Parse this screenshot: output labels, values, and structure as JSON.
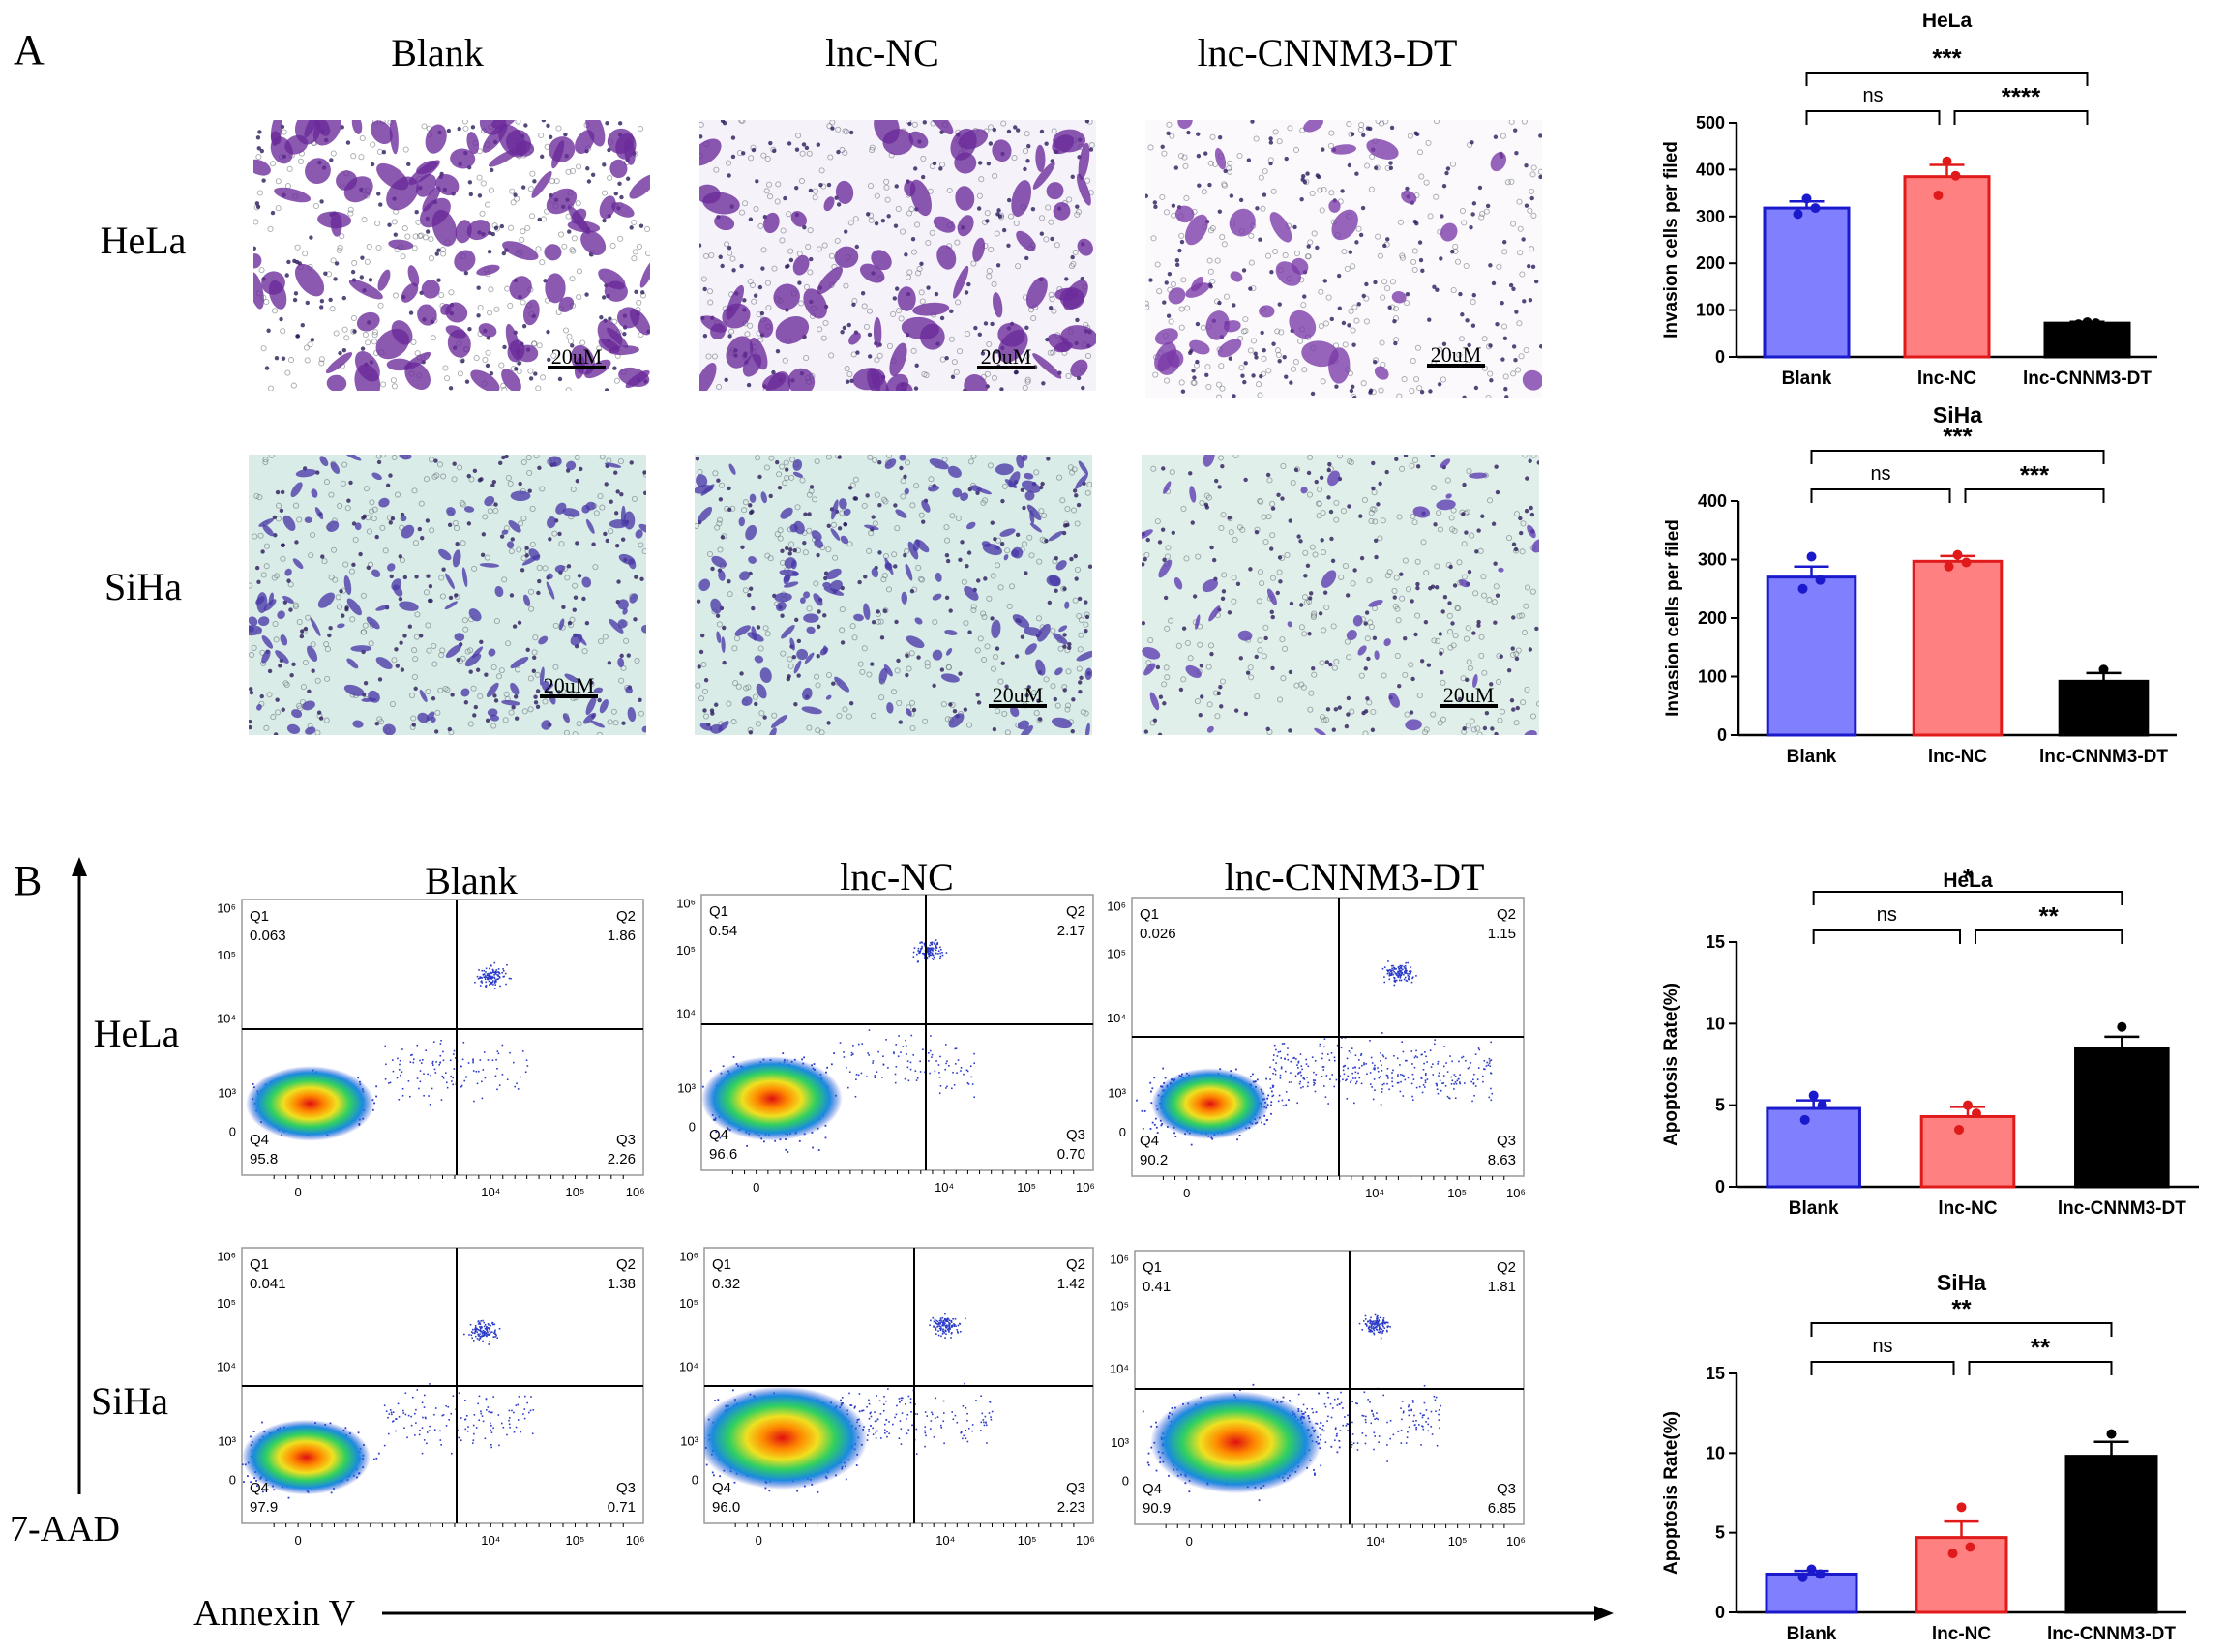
{
  "panel_labels": [
    "A",
    "B"
  ],
  "panel_a": {
    "column_titles": [
      "Blank",
      "lnc-NC",
      "lnc-CNNM3-DT"
    ],
    "row_labels": [
      "HeLa",
      "SiHa"
    ],
    "scale_bar_label": "20uM"
  },
  "panel_b": {
    "column_titles": [
      "Blank",
      "lnc-NC",
      "lnc-CNNM3-DT"
    ],
    "row_labels": [
      "HeLa",
      "SiHa"
    ],
    "x_axis_label": "Annexin V",
    "y_axis_label": "7-AAD",
    "flow_tick_labels": {
      "y": [
        "10⁶",
        "10⁵",
        "10⁴",
        "10³",
        "0"
      ],
      "x": [
        "0",
        "10⁴",
        "10⁵",
        "10⁶"
      ]
    },
    "quadrant_names": [
      "Q1",
      "Q2",
      "Q3",
      "Q4"
    ],
    "quadrants": [
      {
        "cell": "HeLa",
        "group": "Blank",
        "Q1": "0.063",
        "Q2": "1.86",
        "Q3": "2.26",
        "Q4": "95.8"
      },
      {
        "cell": "HeLa",
        "group": "lnc-NC",
        "Q1": "0.54",
        "Q2": "2.17",
        "Q3": "0.70",
        "Q4": "96.6"
      },
      {
        "cell": "HeLa",
        "group": "lnc-CNNM3-DT",
        "Q1": "0.026",
        "Q2": "1.15",
        "Q3": "8.63",
        "Q4": "90.2"
      },
      {
        "cell": "SiHa",
        "group": "Blank",
        "Q1": "0.041",
        "Q2": "1.38",
        "Q3": "0.71",
        "Q4": "97.9"
      },
      {
        "cell": "SiHa",
        "group": "lnc-NC",
        "Q1": "0.32",
        "Q2": "1.42",
        "Q3": "2.23",
        "Q4": "96.0"
      },
      {
        "cell": "SiHa",
        "group": "lnc-CNNM3-DT",
        "Q1": "0.41",
        "Q2": "1.81",
        "Q3": "6.85",
        "Q4": "90.9"
      }
    ]
  },
  "colors": {
    "blank_fill": "#8080ff",
    "blank_edge": "#1a1acc",
    "nc_fill": "#ff8080",
    "nc_edge": "#e01a1a",
    "dt_fill": "#000000"
  },
  "chart_data": [
    {
      "type": "bar",
      "title": "HeLa",
      "ylabel": "Invasion cells per filed",
      "xlabel": "",
      "categories": [
        "Blank",
        "lnc-NC",
        "lnc-CNNM3-DT"
      ],
      "values": [
        318,
        385,
        72
      ],
      "errors": [
        14,
        25,
        3
      ],
      "points": [
        [
          305,
          318,
          338
        ],
        [
          345,
          387,
          418
        ],
        [
          70,
          72,
          74
        ]
      ],
      "ylim": [
        0,
        500
      ],
      "yticks": [
        0,
        100,
        200,
        300,
        400,
        500
      ],
      "significance": [
        {
          "from": 0,
          "to": 1,
          "label": "ns",
          "level": 1
        },
        {
          "from": 1,
          "to": 2,
          "label": "****",
          "level": 1
        },
        {
          "from": 0,
          "to": 2,
          "label": "***",
          "level": 2
        }
      ]
    },
    {
      "type": "bar",
      "title": "SiHa",
      "ylabel": "Invasion cells per filed",
      "xlabel": "",
      "categories": [
        "Blank",
        "lnc-NC",
        "lnc-CNNM3-DT"
      ],
      "values": [
        270,
        297,
        92
      ],
      "errors": [
        18,
        9,
        14
      ],
      "points": [
        [
          250,
          265,
          305
        ],
        [
          288,
          295,
          308
        ],
        [
          80,
          85,
          112
        ]
      ],
      "ylim": [
        0,
        400
      ],
      "yticks": [
        0,
        100,
        200,
        300,
        400
      ],
      "significance": [
        {
          "from": 0,
          "to": 1,
          "label": "ns",
          "level": 1
        },
        {
          "from": 1,
          "to": 2,
          "label": "***",
          "level": 1
        },
        {
          "from": 0,
          "to": 2,
          "label": "***",
          "level": 2
        }
      ]
    },
    {
      "type": "bar",
      "title": "HeLa",
      "ylabel": "Apoptosis Rate(%)",
      "xlabel": "",
      "categories": [
        "Blank",
        "lnc-NC",
        "lnc-CNNM3-DT"
      ],
      "values": [
        4.8,
        4.3,
        8.5
      ],
      "errors": [
        0.5,
        0.6,
        0.7
      ],
      "points": [
        [
          4.1,
          5.0,
          5.6
        ],
        [
          3.5,
          4.5,
          5.0
        ],
        [
          7.8,
          8.0,
          9.8
        ]
      ],
      "ylim": [
        0,
        15
      ],
      "yticks": [
        0,
        5,
        10,
        15
      ],
      "significance": [
        {
          "from": 0,
          "to": 1,
          "label": "ns",
          "level": 1
        },
        {
          "from": 1,
          "to": 2,
          "label": "**",
          "level": 1
        },
        {
          "from": 0,
          "to": 2,
          "label": "*",
          "level": 2
        }
      ]
    },
    {
      "type": "bar",
      "title": "SiHa",
      "ylabel": "Apoptosis Rate(%)",
      "xlabel": "",
      "categories": [
        "Blank",
        "lnc-NC",
        "lnc-CNNM3-DT"
      ],
      "values": [
        2.4,
        4.7,
        9.8
      ],
      "errors": [
        0.2,
        1.0,
        0.9
      ],
      "points": [
        [
          2.2,
          2.4,
          2.7
        ],
        [
          3.7,
          4.1,
          6.6
        ],
        [
          8.8,
          9.4,
          11.2
        ]
      ],
      "ylim": [
        0,
        15
      ],
      "yticks": [
        0,
        5,
        10,
        15
      ],
      "significance": [
        {
          "from": 0,
          "to": 1,
          "label": "ns",
          "level": 1
        },
        {
          "from": 1,
          "to": 2,
          "label": "**",
          "level": 1
        },
        {
          "from": 0,
          "to": 2,
          "label": "**",
          "level": 2
        }
      ]
    }
  ]
}
